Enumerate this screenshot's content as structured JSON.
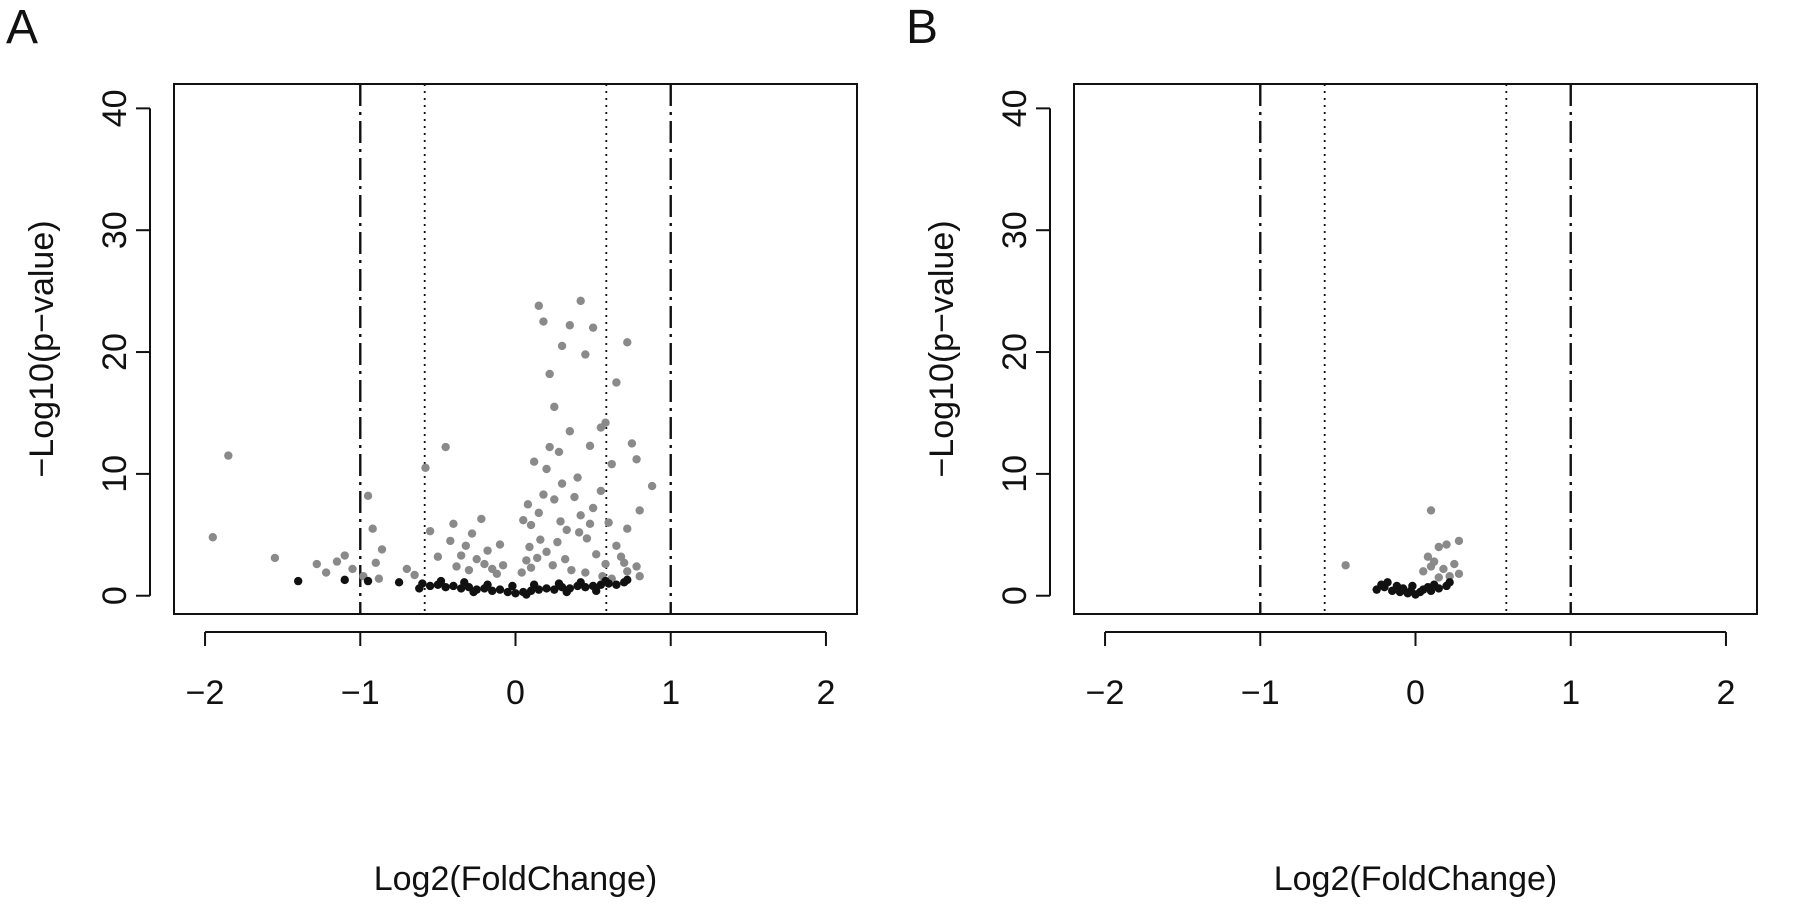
{
  "chart_data": [
    {
      "panel_label": "A",
      "type": "scatter",
      "xlabel": "Log2(FoldChange)",
      "ylabel": "−Log10(p−value)",
      "xlim": [
        -2.2,
        2.2
      ],
      "ylim": [
        -1.5,
        42
      ],
      "xticks": [
        -2,
        -1,
        0,
        1,
        2
      ],
      "xtick_labels": [
        "−2",
        "−1",
        "0",
        "1",
        "2"
      ],
      "yticks": [
        0,
        10,
        20,
        30,
        40
      ],
      "ytick_labels": [
        "0",
        "10",
        "20",
        "30",
        "40"
      ],
      "threshold_lines": [
        {
          "x": -1,
          "style": "dashdot"
        },
        {
          "x": 1,
          "style": "dashdot"
        },
        {
          "x": -0.585,
          "style": "dotted"
        },
        {
          "x": 0.585,
          "style": "dotted"
        }
      ],
      "colors": {
        "significant": "#8a8a8a",
        "not_significant": "#111111"
      },
      "series": [
        {
          "group": "significant",
          "points": [
            [
              -1.95,
              4.8
            ],
            [
              -1.85,
              11.5
            ],
            [
              -1.55,
              3.1
            ],
            [
              -1.28,
              2.6
            ],
            [
              -1.22,
              1.9
            ],
            [
              -1.15,
              2.8
            ],
            [
              -1.1,
              3.3
            ],
            [
              -1.05,
              2.2
            ],
            [
              -0.98,
              1.6
            ],
            [
              -0.95,
              8.2
            ],
            [
              -0.92,
              5.5
            ],
            [
              -0.9,
              2.7
            ],
            [
              -0.88,
              1.4
            ],
            [
              -0.86,
              3.8
            ],
            [
              -0.7,
              2.2
            ],
            [
              -0.65,
              1.7
            ],
            [
              -0.58,
              10.5
            ],
            [
              -0.55,
              5.3
            ],
            [
              -0.5,
              3.2
            ],
            [
              -0.45,
              12.2
            ],
            [
              -0.42,
              4.5
            ],
            [
              -0.4,
              5.9
            ],
            [
              -0.38,
              2.4
            ],
            [
              -0.35,
              3.3
            ],
            [
              -0.32,
              4.1
            ],
            [
              -0.3,
              2.1
            ],
            [
              -0.28,
              5.1
            ],
            [
              -0.25,
              3.0
            ],
            [
              -0.22,
              6.3
            ],
            [
              -0.2,
              2.6
            ],
            [
              -0.18,
              3.7
            ],
            [
              -0.15,
              2.2
            ],
            [
              -0.12,
              1.8
            ],
            [
              -0.1,
              4.2
            ],
            [
              -0.08,
              2.5
            ],
            [
              0.15,
              23.8
            ],
            [
              0.18,
              22.5
            ],
            [
              0.22,
              18.2
            ],
            [
              0.25,
              15.5
            ],
            [
              0.3,
              20.5
            ],
            [
              0.35,
              22.2
            ],
            [
              0.42,
              24.2
            ],
            [
              0.45,
              19.8
            ],
            [
              0.5,
              22.0
            ],
            [
              0.55,
              13.8
            ],
            [
              0.58,
              14.2
            ],
            [
              0.65,
              17.5
            ],
            [
              0.72,
              20.8
            ],
            [
              0.75,
              12.5
            ],
            [
              0.78,
              11.2
            ],
            [
              0.88,
              9.0
            ],
            [
              0.8,
              7.0
            ],
            [
              0.72,
              5.5
            ],
            [
              0.62,
              10.8
            ],
            [
              0.55,
              8.6
            ],
            [
              0.48,
              12.3
            ],
            [
              0.4,
              9.7
            ],
            [
              0.35,
              13.5
            ],
            [
              0.28,
              11.8
            ],
            [
              0.22,
              12.2
            ],
            [
              0.2,
              10.4
            ],
            [
              0.18,
              8.3
            ],
            [
              0.12,
              11.0
            ],
            [
              0.08,
              7.5
            ],
            [
              0.05,
              6.2
            ],
            [
              0.1,
              5.8
            ],
            [
              0.15,
              6.8
            ],
            [
              0.25,
              7.9
            ],
            [
              0.3,
              9.2
            ],
            [
              0.38,
              8.1
            ],
            [
              0.42,
              6.6
            ],
            [
              0.5,
              7.2
            ],
            [
              0.6,
              6.0
            ],
            [
              0.65,
              4.1
            ],
            [
              0.58,
              2.6
            ],
            [
              0.52,
              3.4
            ],
            [
              0.46,
              4.7
            ],
            [
              0.33,
              5.4
            ],
            [
              0.27,
              4.4
            ],
            [
              0.2,
              3.6
            ],
            [
              0.14,
              3.1
            ],
            [
              0.07,
              2.9
            ],
            [
              0.04,
              1.9
            ],
            [
              0.1,
              2.3
            ],
            [
              0.24,
              2.5
            ],
            [
              0.36,
              2.1
            ],
            [
              0.45,
              1.9
            ],
            [
              0.56,
              1.6
            ],
            [
              0.62,
              1.4
            ],
            [
              0.16,
              4.6
            ],
            [
              0.29,
              6.1
            ],
            [
              0.41,
              5.2
            ],
            [
              0.09,
              4.0
            ],
            [
              0.32,
              3.0
            ],
            [
              0.48,
              5.9
            ],
            [
              0.68,
              3.2
            ],
            [
              0.72,
              2.0
            ],
            [
              0.8,
              1.6
            ],
            [
              0.7,
              2.7
            ],
            [
              0.78,
              2.4
            ]
          ]
        },
        {
          "group": "not_significant",
          "points": [
            [
              -1.4,
              1.2
            ],
            [
              -1.1,
              1.3
            ],
            [
              -0.95,
              1.2
            ],
            [
              -0.75,
              1.1
            ],
            [
              -0.6,
              1.0
            ],
            [
              -0.55,
              0.8
            ],
            [
              -0.5,
              0.9
            ],
            [
              -0.45,
              0.7
            ],
            [
              -0.4,
              0.8
            ],
            [
              -0.35,
              0.6
            ],
            [
              -0.3,
              0.7
            ],
            [
              -0.25,
              0.5
            ],
            [
              -0.2,
              0.6
            ],
            [
              -0.15,
              0.4
            ],
            [
              -0.1,
              0.5
            ],
            [
              -0.05,
              0.3
            ],
            [
              0.0,
              0.2
            ],
            [
              0.05,
              0.3
            ],
            [
              0.1,
              0.4
            ],
            [
              0.15,
              0.5
            ],
            [
              0.2,
              0.6
            ],
            [
              0.25,
              0.5
            ],
            [
              0.3,
              0.7
            ],
            [
              0.35,
              0.6
            ],
            [
              0.4,
              0.8
            ],
            [
              0.45,
              0.7
            ],
            [
              0.5,
              0.8
            ],
            [
              0.55,
              0.9
            ],
            [
              0.6,
              1.0
            ],
            [
              0.65,
              0.9
            ],
            [
              0.7,
              1.1
            ],
            [
              0.72,
              1.3
            ],
            [
              -0.48,
              1.2
            ],
            [
              -0.33,
              1.1
            ],
            [
              -0.18,
              0.9
            ],
            [
              -0.02,
              0.8
            ],
            [
              0.12,
              0.9
            ],
            [
              0.28,
              1.0
            ],
            [
              0.42,
              1.1
            ],
            [
              0.58,
              1.2
            ],
            [
              -0.62,
              0.6
            ],
            [
              -0.27,
              0.3
            ],
            [
              0.07,
              0.1
            ],
            [
              0.33,
              0.3
            ],
            [
              0.52,
              0.4
            ]
          ]
        }
      ]
    },
    {
      "panel_label": "B",
      "type": "scatter",
      "xlabel": "Log2(FoldChange)",
      "ylabel": "−Log10(p−value)",
      "xlim": [
        -2.2,
        2.2
      ],
      "ylim": [
        -1.5,
        42
      ],
      "xticks": [
        -2,
        -1,
        0,
        1,
        2
      ],
      "xtick_labels": [
        "−2",
        "−1",
        "0",
        "1",
        "2"
      ],
      "yticks": [
        0,
        10,
        20,
        30,
        40
      ],
      "ytick_labels": [
        "0",
        "10",
        "20",
        "30",
        "40"
      ],
      "threshold_lines": [
        {
          "x": -1,
          "style": "dashdot"
        },
        {
          "x": 1,
          "style": "dashdot"
        },
        {
          "x": -0.585,
          "style": "dotted"
        },
        {
          "x": 0.585,
          "style": "dotted"
        }
      ],
      "colors": {
        "significant": "#8a8a8a",
        "not_significant": "#111111"
      },
      "series": [
        {
          "group": "significant",
          "points": [
            [
              -0.45,
              2.5
            ],
            [
              0.1,
              7.0
            ],
            [
              0.15,
              4.0
            ],
            [
              0.2,
              4.2
            ],
            [
              0.28,
              4.5
            ],
            [
              0.08,
              3.2
            ],
            [
              0.12,
              2.8
            ],
            [
              0.18,
              2.2
            ],
            [
              0.25,
              2.6
            ],
            [
              0.05,
              2.0
            ],
            [
              0.22,
              1.6
            ],
            [
              0.28,
              1.8
            ],
            [
              0.15,
              1.5
            ],
            [
              0.1,
              2.4
            ]
          ]
        },
        {
          "group": "not_significant",
          "points": [
            [
              -0.25,
              0.5
            ],
            [
              -0.2,
              0.7
            ],
            [
              -0.18,
              1.1
            ],
            [
              -0.15,
              0.4
            ],
            [
              -0.12,
              0.8
            ],
            [
              -0.1,
              0.3
            ],
            [
              -0.08,
              0.6
            ],
            [
              -0.05,
              0.2
            ],
            [
              -0.03,
              0.4
            ],
            [
              0.0,
              0.1
            ],
            [
              0.03,
              0.3
            ],
            [
              0.05,
              0.5
            ],
            [
              0.08,
              0.7
            ],
            [
              0.1,
              0.4
            ],
            [
              0.12,
              0.9
            ],
            [
              0.15,
              0.6
            ],
            [
              0.2,
              0.8
            ],
            [
              0.22,
              1.1
            ],
            [
              -0.22,
              0.9
            ],
            [
              -0.02,
              0.8
            ]
          ]
        }
      ]
    }
  ]
}
